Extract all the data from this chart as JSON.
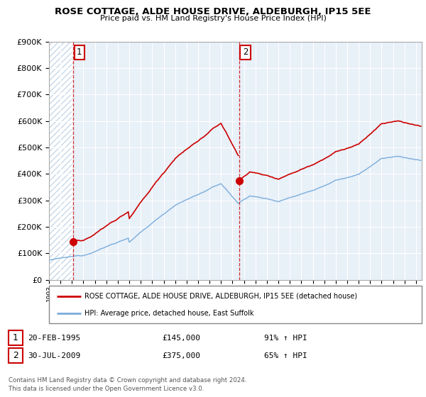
{
  "title": "ROSE COTTAGE, ALDE HOUSE DRIVE, ALDEBURGH, IP15 5EE",
  "subtitle": "Price paid vs. HM Land Registry's House Price Index (HPI)",
  "ylim": [
    0,
    900000
  ],
  "yticks": [
    0,
    100000,
    200000,
    300000,
    400000,
    500000,
    600000,
    700000,
    800000,
    900000
  ],
  "ytick_labels": [
    "£0",
    "£100K",
    "£200K",
    "£300K",
    "£400K",
    "£500K",
    "£600K",
    "£700K",
    "£800K",
    "£900K"
  ],
  "xlim_start": 1993.0,
  "xlim_end": 2025.5,
  "sale1_date": 1995.12,
  "sale1_price": 145000,
  "sale2_date": 2009.58,
  "sale2_price": 375000,
  "hpi_color": "#7aaddc",
  "price_color": "#cc0000",
  "legend_line1": "ROSE COTTAGE, ALDE HOUSE DRIVE, ALDEBURGH, IP15 5EE (detached house)",
  "legend_line2": "HPI: Average price, detached house, East Suffolk",
  "footer": "Contains HM Land Registry data © Crown copyright and database right 2024.\nThis data is licensed under the Open Government Licence v3.0.",
  "background_hatch_color": "#c8d8e8",
  "background_main_color": "#e8f0f8"
}
